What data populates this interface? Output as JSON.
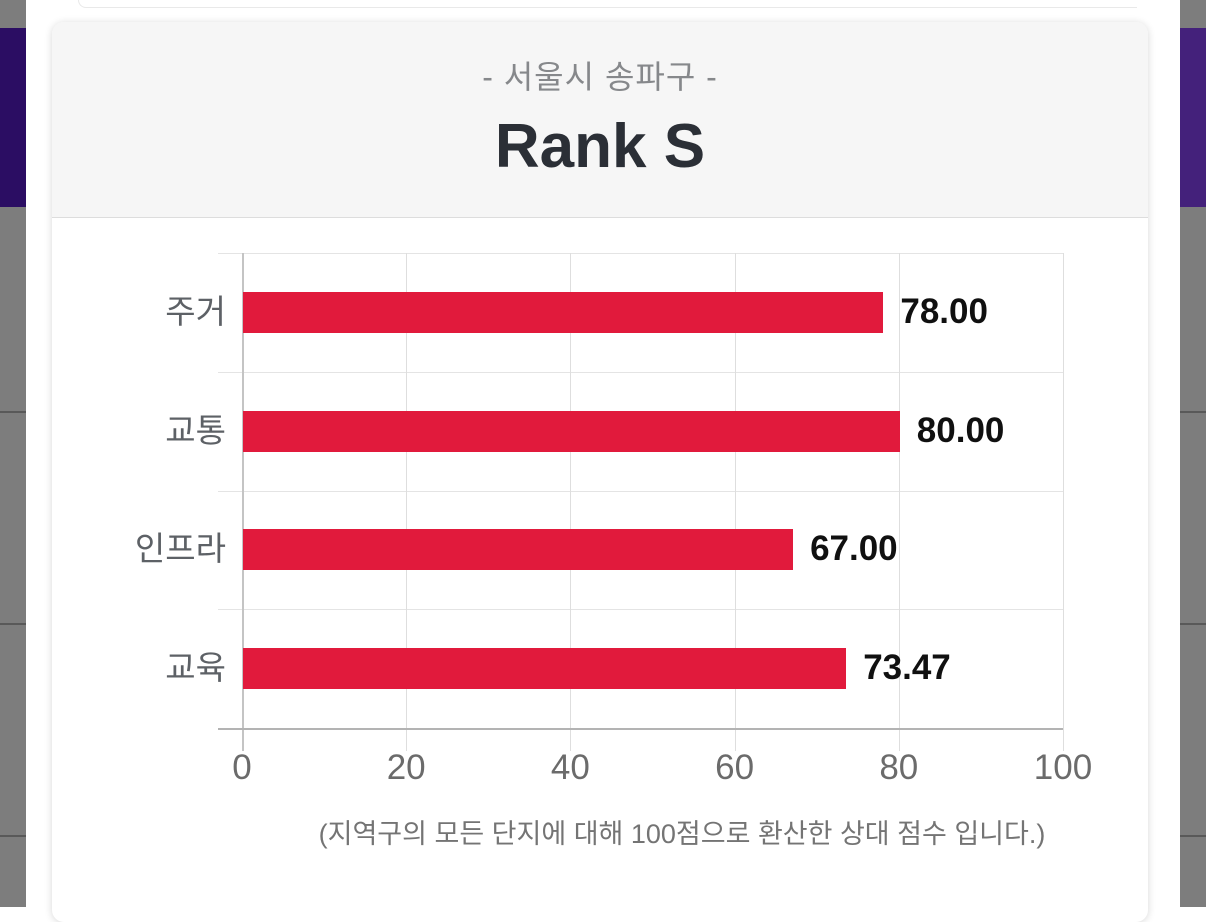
{
  "header": {
    "subtitle": "- 서울시 송파구 -",
    "title": "Rank S"
  },
  "chart_data": {
    "type": "bar",
    "orientation": "horizontal",
    "title": "Rank S",
    "subtitle": "- 서울시 송파구 -",
    "categories": [
      "주거",
      "교통",
      "인프라",
      "교육"
    ],
    "values": [
      78.0,
      80.0,
      67.0,
      73.47
    ],
    "value_labels": [
      "78.00",
      "80.00",
      "67.00",
      "73.47"
    ],
    "xlim": [
      0,
      100
    ],
    "x_ticks": [
      0,
      20,
      40,
      60,
      80,
      100
    ],
    "grid": "on",
    "legend": "none",
    "bar_color": "#e11a3c",
    "caption": "(지역구의 모든 단지에 대해 100점으로 환산한 상대 점수 입니다.)"
  },
  "colors": {
    "bar": "#e11a3c",
    "header_bg": "#f6f6f6",
    "card_bg": "#ffffff",
    "purple_left": "#2b0d63",
    "purple_right": "#44217b",
    "strip_gray": "#7d7d7d",
    "grid": "#e4e4e4",
    "title_text": "#2b2f36",
    "subtitle_text": "#86888b"
  }
}
